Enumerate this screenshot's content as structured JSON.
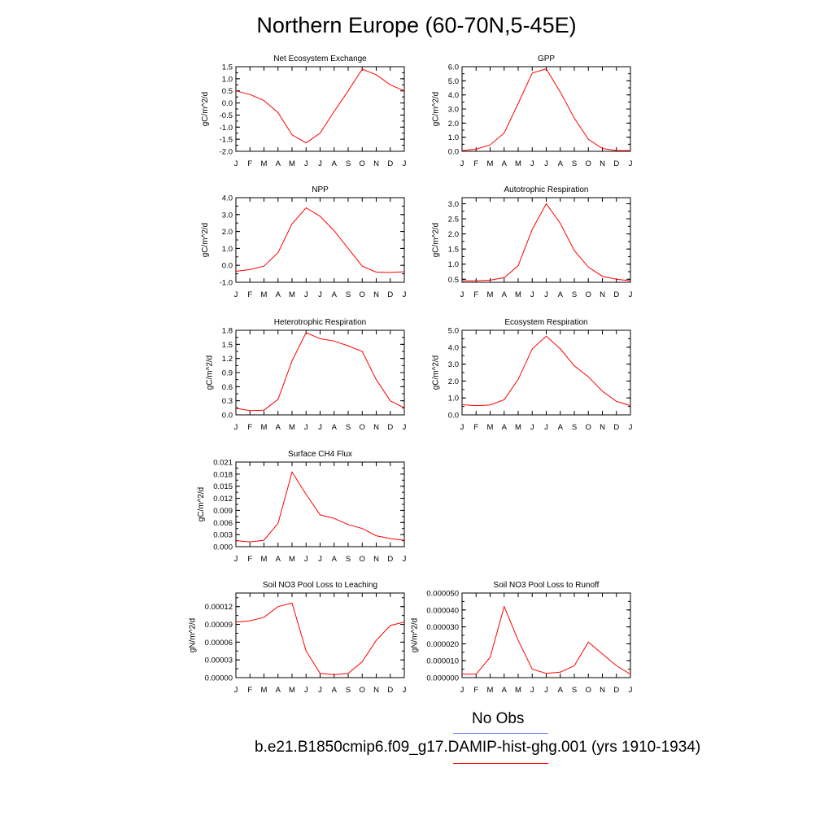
{
  "page_title": "Northern Europe (60-70N,5-45E)",
  "colors": {
    "model": "#ff0000",
    "obs": "#6f7cf0"
  },
  "legend": {
    "obs_label": "No Obs",
    "model_label": "b.e21.B1850cmip6.f09_g17.DAMIP-hist-ghg.001 (yrs 1910-1934)"
  },
  "chart_data": [
    {
      "type": "line",
      "title": "Net Ecosystem Exchange",
      "ylabel": "gC/m^2/d",
      "categories": [
        "J",
        "F",
        "M",
        "A",
        "M",
        "J",
        "J",
        "A",
        "S",
        "O",
        "N",
        "D",
        "J"
      ],
      "yticks": [
        "1.5",
        "1.0",
        "0.5",
        "0.0",
        "-0.5",
        "-1.0",
        "-1.5",
        "-2.0"
      ],
      "ylim": [
        -2.0,
        1.5
      ],
      "values": [
        0.5,
        0.35,
        0.1,
        -0.4,
        -1.32,
        -1.65,
        -1.25,
        -0.35,
        0.5,
        1.4,
        1.17,
        0.75,
        0.5
      ]
    },
    {
      "type": "line",
      "title": "GPP",
      "ylabel": "gC/m^2/d",
      "categories": [
        "J",
        "F",
        "M",
        "A",
        "M",
        "J",
        "J",
        "A",
        "S",
        "O",
        "N",
        "D",
        "J"
      ],
      "yticks": [
        "6.0",
        "5.0",
        "4.0",
        "3.0",
        "2.0",
        "1.0",
        "0.0"
      ],
      "ylim": [
        0,
        6
      ],
      "values": [
        0.05,
        0.15,
        0.45,
        1.3,
        3.4,
        5.55,
        5.85,
        4.2,
        2.35,
        0.85,
        0.2,
        0.05,
        0.05
      ]
    },
    {
      "type": "line",
      "title": "NPP",
      "ylabel": "gC/m^2/d",
      "categories": [
        "J",
        "F",
        "M",
        "A",
        "M",
        "J",
        "J",
        "A",
        "S",
        "O",
        "N",
        "D",
        "J"
      ],
      "yticks": [
        "4.0",
        "3.0",
        "2.0",
        "1.0",
        "0.0",
        "-1.0"
      ],
      "ylim": [
        -1,
        4
      ],
      "values": [
        -0.35,
        -0.25,
        -0.05,
        0.75,
        2.45,
        3.4,
        2.9,
        2.05,
        1.0,
        -0.05,
        -0.4,
        -0.42,
        -0.38
      ]
    },
    {
      "type": "line",
      "title": "Autotrophic Respiration",
      "ylabel": "gC/m^2/d",
      "categories": [
        "J",
        "F",
        "M",
        "A",
        "M",
        "J",
        "J",
        "A",
        "S",
        "O",
        "N",
        "D",
        "J"
      ],
      "yticks": [
        "3.0",
        "2.5",
        "2.0",
        "1.5",
        "1.0",
        "0.5"
      ],
      "ylim": [
        0.4,
        3.2
      ],
      "values": [
        0.45,
        0.45,
        0.47,
        0.55,
        0.95,
        2.15,
        3.0,
        2.35,
        1.45,
        0.9,
        0.6,
        0.5,
        0.45
      ]
    },
    {
      "type": "line",
      "title": "Heterotrophic Respiration",
      "ylabel": "gC/m^2/d",
      "categories": [
        "J",
        "F",
        "M",
        "A",
        "M",
        "J",
        "J",
        "A",
        "S",
        "O",
        "N",
        "D",
        "J"
      ],
      "yticks": [
        "1.8",
        "1.5",
        "1.2",
        "0.9",
        "0.6",
        "0.3",
        "0.0"
      ],
      "ylim": [
        0,
        1.8
      ],
      "values": [
        0.14,
        0.09,
        0.1,
        0.33,
        1.15,
        1.75,
        1.62,
        1.57,
        1.47,
        1.35,
        0.75,
        0.3,
        0.15
      ]
    },
    {
      "type": "line",
      "title": "Ecosystem Respiration",
      "ylabel": "gC/m^2/d",
      "categories": [
        "J",
        "F",
        "M",
        "A",
        "M",
        "J",
        "J",
        "A",
        "S",
        "O",
        "N",
        "D",
        "J"
      ],
      "yticks": [
        "5.0",
        "4.0",
        "3.0",
        "2.0",
        "1.0",
        "0.0"
      ],
      "ylim": [
        0,
        5
      ],
      "values": [
        0.6,
        0.55,
        0.58,
        0.9,
        2.1,
        3.9,
        4.65,
        3.9,
        2.9,
        2.25,
        1.4,
        0.8,
        0.55
      ]
    },
    {
      "type": "line",
      "title": "Surface CH4 Flux",
      "ylabel": "gC/m^2/d",
      "categories": [
        "J",
        "F",
        "M",
        "A",
        "M",
        "J",
        "J",
        "A",
        "S",
        "O",
        "N",
        "D",
        "J"
      ],
      "yticks": [
        "0.021",
        "0.018",
        "0.015",
        "0.012",
        "0.009",
        "0.006",
        "0.003",
        "0.000"
      ],
      "ylim": [
        0,
        0.021
      ],
      "values": [
        0.0015,
        0.0012,
        0.0016,
        0.0058,
        0.0185,
        0.013,
        0.0079,
        0.007,
        0.0055,
        0.0045,
        0.0027,
        0.002,
        0.0016
      ]
    },
    {
      "type": "line",
      "title": "Soil NO3 Pool Loss to Leaching",
      "ylabel": "gN/m^2/d",
      "categories": [
        "J",
        "F",
        "M",
        "A",
        "M",
        "J",
        "J",
        "A",
        "S",
        "O",
        "N",
        "D",
        "J"
      ],
      "yticks": [
        "0.00012",
        "0.00009",
        "0.00006",
        "0.00003",
        "0.00000"
      ],
      "ylim": [
        0,
        0.000143
      ],
      "values": [
        9.4e-05,
        9.6e-05,
        0.000102,
        0.00012,
        0.000126,
        4.5e-05,
        7e-06,
        5e-06,
        7e-06,
        2.7e-05,
        6.3e-05,
        8.8e-05,
        9.4e-05
      ]
    },
    {
      "type": "line",
      "title": "Soil NO3 Pool Loss to Runoff",
      "ylabel": "gN/m^2/d",
      "categories": [
        "J",
        "F",
        "M",
        "A",
        "M",
        "J",
        "J",
        "A",
        "S",
        "O",
        "N",
        "D",
        "J"
      ],
      "yticks": [
        "0.000050",
        "0.000040",
        "0.000030",
        "0.000020",
        "0.000010",
        "0.000000"
      ],
      "ylim": [
        0,
        5e-05
      ],
      "values": [
        2e-06,
        2e-06,
        1.2e-05,
        4.2e-05,
        2.2e-05,
        5e-06,
        2.5e-06,
        3.2e-06,
        7e-06,
        2.1e-05,
        1.4e-05,
        7e-06,
        2e-06
      ]
    }
  ]
}
